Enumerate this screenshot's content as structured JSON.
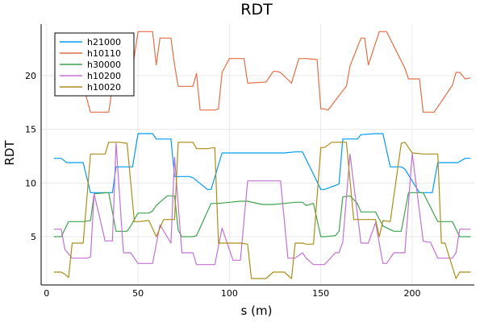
{
  "chart_data": {
    "type": "line",
    "title": "RDT",
    "xlabel": "s (m)",
    "ylabel": "RDT",
    "xlim": [
      -3,
      234
    ],
    "ylim": [
      0.5,
      24.8
    ],
    "xticks": [
      0,
      50,
      100,
      150,
      200
    ],
    "yticks": [
      5,
      10,
      15,
      20
    ],
    "grid": true,
    "legend_position": "top-left",
    "series": [
      {
        "name": "h21000",
        "color": "#009AFA",
        "x": [
          4,
          8,
          11,
          20,
          24,
          26,
          36,
          38,
          47,
          50,
          58,
          60,
          68,
          70,
          78,
          80,
          88,
          90,
          96,
          100,
          130,
          136,
          140,
          150,
          152,
          160,
          162,
          170,
          172,
          180,
          184,
          188,
          194,
          196,
          204,
          206,
          211,
          214,
          218,
          225,
          229,
          232
        ],
        "y": [
          12.3,
          12.3,
          11.9,
          11.9,
          9.1,
          9.1,
          9.1,
          11.5,
          11.5,
          14.6,
          14.6,
          14.1,
          14.1,
          10.6,
          10.6,
          10.5,
          9.4,
          9.4,
          12.8,
          12.8,
          12.8,
          12.9,
          12.9,
          9.4,
          9.4,
          9.9,
          14.1,
          14.1,
          14.5,
          14.6,
          14.6,
          11.5,
          11.5,
          11.3,
          9.1,
          9.1,
          9.1,
          11.9,
          11.9,
          11.9,
          12.3,
          12.3
        ]
      },
      {
        "name": "h10110",
        "color": "#E26F46",
        "x": [
          4,
          8,
          11,
          20,
          24,
          27,
          34,
          36,
          38,
          47,
          50,
          58,
          60,
          62,
          68,
          70,
          72,
          80,
          82,
          84,
          92,
          94,
          96,
          100,
          104,
          106,
          108,
          110,
          120,
          124,
          126,
          128,
          134,
          138,
          140,
          142,
          148,
          150,
          152,
          154,
          162,
          164,
          166,
          172,
          174,
          176,
          182,
          184,
          186,
          196,
          198,
          204,
          206,
          210,
          212,
          222,
          224,
          226,
          229,
          232
        ],
        "y": [
          19.7,
          19.8,
          19.7,
          19.1,
          16.6,
          16.6,
          16.6,
          19.0,
          20.7,
          20.7,
          24.1,
          24.1,
          21.0,
          23.5,
          23.5,
          21.0,
          19.0,
          19.0,
          20.2,
          16.8,
          16.8,
          16.9,
          20.3,
          21.6,
          21.6,
          21.6,
          21.6,
          19.3,
          19.4,
          20.4,
          20.4,
          20.3,
          19.3,
          21.6,
          21.6,
          21.6,
          21.5,
          16.9,
          16.9,
          16.8,
          18.6,
          19.0,
          20.9,
          23.5,
          23.5,
          21.0,
          24.1,
          24.1,
          24.1,
          20.7,
          19.7,
          19.7,
          16.6,
          16.6,
          16.6,
          19.1,
          20.3,
          20.3,
          19.7,
          19.8
        ]
      },
      {
        "name": "h30000",
        "color": "#3DA44D",
        "x": [
          4,
          8,
          12,
          20,
          24,
          26,
          34,
          38,
          44,
          46,
          50,
          56,
          58,
          60,
          66,
          70,
          72,
          74,
          80,
          82,
          90,
          92,
          94,
          100,
          106,
          110,
          118,
          124,
          130,
          136,
          140,
          142,
          146,
          150,
          152,
          158,
          160,
          162,
          166,
          170,
          172,
          176,
          180,
          184,
          190,
          194,
          198,
          204,
          206,
          214,
          218,
          222,
          226,
          229,
          232
        ],
        "y": [
          5.0,
          5.0,
          6.4,
          6.4,
          6.5,
          9.0,
          9.1,
          5.5,
          5.5,
          6.0,
          7.2,
          7.2,
          7.4,
          7.9,
          8.8,
          8.8,
          5.6,
          5.0,
          5.0,
          5.1,
          8.1,
          8.1,
          8.1,
          8.2,
          8.3,
          8.3,
          8.0,
          8.0,
          8.1,
          8.2,
          8.2,
          7.9,
          8.1,
          5.0,
          5.0,
          5.1,
          5.5,
          8.7,
          8.8,
          8.1,
          7.3,
          7.3,
          7.3,
          6.0,
          5.5,
          5.5,
          9.1,
          9.1,
          9.1,
          6.4,
          6.4,
          6.4,
          5.0,
          5.0,
          5.0
        ]
      },
      {
        "name": "h10200",
        "color": "#C271D2",
        "x": [
          4,
          8,
          10,
          14,
          22,
          24,
          26,
          32,
          34,
          36,
          38,
          42,
          46,
          50,
          56,
          58,
          62,
          68,
          70,
          74,
          80,
          82,
          90,
          92,
          96,
          102,
          106,
          110,
          124,
          128,
          132,
          136,
          140,
          142,
          146,
          150,
          152,
          158,
          160,
          162,
          166,
          172,
          176,
          180,
          184,
          186,
          190,
          194,
          196,
          200,
          206,
          208,
          210,
          214,
          222,
          224,
          226,
          229,
          232
        ],
        "y": [
          5.7,
          5.7,
          3.8,
          3.0,
          3.0,
          3.1,
          9.0,
          4.6,
          4.6,
          4.6,
          13.7,
          3.5,
          3.5,
          2.5,
          2.5,
          2.5,
          6.1,
          4.4,
          12.4,
          3.5,
          3.5,
          2.4,
          2.4,
          2.4,
          5.8,
          2.8,
          2.8,
          10.2,
          10.2,
          10.2,
          3.0,
          3.0,
          3.5,
          3.0,
          2.4,
          2.4,
          2.4,
          3.5,
          3.5,
          4.5,
          12.7,
          4.4,
          4.4,
          6.3,
          2.5,
          2.5,
          3.5,
          3.5,
          3.5,
          12.8,
          4.6,
          4.5,
          4.5,
          3.0,
          3.0,
          3.5,
          5.7,
          5.7,
          5.7
        ]
      },
      {
        "name": "h10020",
        "color": "#AC8D18",
        "x": [
          4,
          8,
          10,
          12,
          14,
          20,
          24,
          26,
          32,
          34,
          36,
          40,
          44,
          48,
          50,
          56,
          60,
          64,
          66,
          70,
          72,
          76,
          80,
          82,
          88,
          92,
          94,
          96,
          102,
          106,
          110,
          112,
          120,
          124,
          126,
          128,
          130,
          134,
          136,
          140,
          142,
          146,
          150,
          152,
          156,
          160,
          164,
          168,
          170,
          174,
          180,
          182,
          184,
          188,
          194,
          196,
          200,
          206,
          210,
          214,
          216,
          218,
          224,
          226,
          229,
          232
        ],
        "y": [
          1.7,
          1.7,
          1.5,
          1.2,
          4.4,
          4.4,
          12.7,
          12.7,
          12.7,
          13.8,
          13.8,
          13.8,
          13.7,
          6.4,
          6.4,
          6.5,
          5.0,
          6.6,
          6.6,
          6.6,
          13.8,
          13.8,
          13.8,
          13.2,
          13.2,
          13.3,
          4.4,
          4.4,
          4.4,
          4.4,
          4.3,
          1.1,
          1.1,
          1.7,
          1.7,
          1.7,
          1.7,
          1.1,
          4.4,
          4.4,
          4.3,
          4.3,
          13.3,
          13.3,
          13.8,
          13.8,
          13.8,
          6.6,
          6.6,
          6.6,
          6.6,
          5.0,
          6.5,
          6.4,
          13.7,
          13.8,
          12.8,
          12.7,
          12.7,
          12.7,
          4.4,
          4.4,
          1.1,
          1.7,
          1.7,
          1.7
        ]
      }
    ]
  }
}
